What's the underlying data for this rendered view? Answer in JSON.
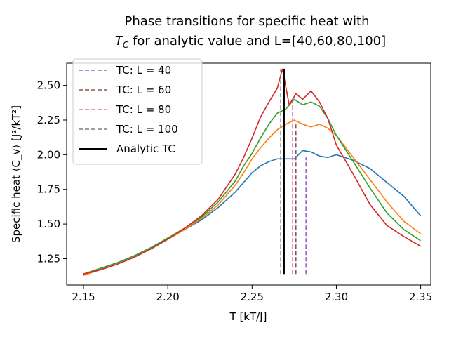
{
  "chart_data": {
    "type": "line",
    "title_line1": "Phase transitions for specific heat with",
    "title_line2_symbol": "T",
    "title_line2_sub": "C",
    "title_line2_rest": " for analytic value and L=[40,60,80,100]",
    "xlabel": "T [kT/J]",
    "ylabel": "Specific heat ⟨C_v⟩ [J²/kT²]",
    "xlim": [
      2.14,
      2.356
    ],
    "ylim": [
      1.06,
      2.66
    ],
    "xticks": [
      2.15,
      2.2,
      2.25,
      2.3,
      2.35
    ],
    "xtick_labels": [
      "2.15",
      "2.20",
      "2.25",
      "2.30",
      "2.35"
    ],
    "yticks": [
      1.25,
      1.5,
      1.75,
      2.0,
      2.25,
      2.5
    ],
    "ytick_labels": [
      "1.25",
      "1.50",
      "1.75",
      "2.00",
      "2.25",
      "2.50"
    ],
    "legend_position": "upper-left",
    "series": [
      {
        "color": "#1f77b4",
        "points": [
          [
            2.15,
            1.14
          ],
          [
            2.16,
            1.18
          ],
          [
            2.17,
            1.22
          ],
          [
            2.18,
            1.27
          ],
          [
            2.19,
            1.33
          ],
          [
            2.2,
            1.39
          ],
          [
            2.21,
            1.46
          ],
          [
            2.22,
            1.53
          ],
          [
            2.23,
            1.62
          ],
          [
            2.24,
            1.73
          ],
          [
            2.245,
            1.8
          ],
          [
            2.25,
            1.87
          ],
          [
            2.255,
            1.92
          ],
          [
            2.26,
            1.95
          ],
          [
            2.265,
            1.97
          ],
          [
            2.27,
            1.97
          ],
          [
            2.275,
            1.97
          ],
          [
            2.28,
            2.03
          ],
          [
            2.285,
            2.02
          ],
          [
            2.29,
            1.99
          ],
          [
            2.295,
            1.98
          ],
          [
            2.3,
            2.0
          ],
          [
            2.31,
            1.96
          ],
          [
            2.32,
            1.9
          ],
          [
            2.33,
            1.8
          ],
          [
            2.34,
            1.7
          ],
          [
            2.35,
            1.56
          ]
        ]
      },
      {
        "color": "#ff7f0e",
        "points": [
          [
            2.15,
            1.13
          ],
          [
            2.16,
            1.17
          ],
          [
            2.17,
            1.21
          ],
          [
            2.18,
            1.26
          ],
          [
            2.19,
            1.32
          ],
          [
            2.2,
            1.39
          ],
          [
            2.21,
            1.46
          ],
          [
            2.22,
            1.54
          ],
          [
            2.23,
            1.64
          ],
          [
            2.24,
            1.78
          ],
          [
            2.245,
            1.87
          ],
          [
            2.25,
            1.97
          ],
          [
            2.255,
            2.05
          ],
          [
            2.26,
            2.12
          ],
          [
            2.265,
            2.18
          ],
          [
            2.27,
            2.22
          ],
          [
            2.275,
            2.25
          ],
          [
            2.28,
            2.22
          ],
          [
            2.285,
            2.2
          ],
          [
            2.29,
            2.22
          ],
          [
            2.295,
            2.19
          ],
          [
            2.3,
            2.14
          ],
          [
            2.31,
            1.98
          ],
          [
            2.32,
            1.82
          ],
          [
            2.33,
            1.66
          ],
          [
            2.34,
            1.52
          ],
          [
            2.35,
            1.43
          ]
        ]
      },
      {
        "color": "#2ca02c",
        "points": [
          [
            2.15,
            1.14
          ],
          [
            2.16,
            1.18
          ],
          [
            2.17,
            1.22
          ],
          [
            2.18,
            1.27
          ],
          [
            2.19,
            1.33
          ],
          [
            2.2,
            1.4
          ],
          [
            2.21,
            1.47
          ],
          [
            2.22,
            1.55
          ],
          [
            2.23,
            1.66
          ],
          [
            2.24,
            1.81
          ],
          [
            2.245,
            1.92
          ],
          [
            2.25,
            2.01
          ],
          [
            2.255,
            2.12
          ],
          [
            2.26,
            2.22
          ],
          [
            2.265,
            2.3
          ],
          [
            2.27,
            2.33
          ],
          [
            2.275,
            2.4
          ],
          [
            2.28,
            2.36
          ],
          [
            2.285,
            2.38
          ],
          [
            2.29,
            2.35
          ],
          [
            2.295,
            2.26
          ],
          [
            2.3,
            2.14
          ],
          [
            2.31,
            1.95
          ],
          [
            2.32,
            1.76
          ],
          [
            2.33,
            1.58
          ],
          [
            2.34,
            1.46
          ],
          [
            2.35,
            1.38
          ]
        ]
      },
      {
        "color": "#d62728",
        "points": [
          [
            2.15,
            1.14
          ],
          [
            2.16,
            1.17
          ],
          [
            2.17,
            1.21
          ],
          [
            2.18,
            1.26
          ],
          [
            2.19,
            1.32
          ],
          [
            2.2,
            1.39
          ],
          [
            2.21,
            1.47
          ],
          [
            2.22,
            1.56
          ],
          [
            2.23,
            1.68
          ],
          [
            2.24,
            1.86
          ],
          [
            2.245,
            1.98
          ],
          [
            2.25,
            2.12
          ],
          [
            2.255,
            2.27
          ],
          [
            2.26,
            2.38
          ],
          [
            2.265,
            2.48
          ],
          [
            2.268,
            2.62
          ],
          [
            2.272,
            2.36
          ],
          [
            2.276,
            2.44
          ],
          [
            2.28,
            2.4
          ],
          [
            2.285,
            2.46
          ],
          [
            2.29,
            2.38
          ],
          [
            2.295,
            2.26
          ],
          [
            2.3,
            2.07
          ],
          [
            2.31,
            1.86
          ],
          [
            2.32,
            1.64
          ],
          [
            2.33,
            1.49
          ],
          [
            2.34,
            1.41
          ],
          [
            2.35,
            1.34
          ]
        ]
      }
    ],
    "vlines": [
      {
        "label": "TC: L = 40",
        "x": 2.282,
        "color": "#9467bd",
        "style": "dashed",
        "y_from": 1.14,
        "y_to": 1.98
      },
      {
        "label": "TC: L = 60",
        "x": 2.276,
        "color": "#8c564b",
        "style": "dashed",
        "y_from": 1.14,
        "y_to": 2.22
      },
      {
        "label": "TC: L = 80",
        "x": 2.274,
        "color": "#e377c2",
        "style": "dashed",
        "y_from": 1.14,
        "y_to": 2.38
      },
      {
        "label": "TC: L = 100",
        "x": 2.267,
        "color": "#7f7f7f",
        "style": "dashed",
        "y_from": 1.14,
        "y_to": 2.62
      },
      {
        "label": "Analytic TC",
        "x": 2.269,
        "color": "#000000",
        "style": "solid",
        "y_from": 1.14,
        "y_to": 2.62
      }
    ]
  }
}
